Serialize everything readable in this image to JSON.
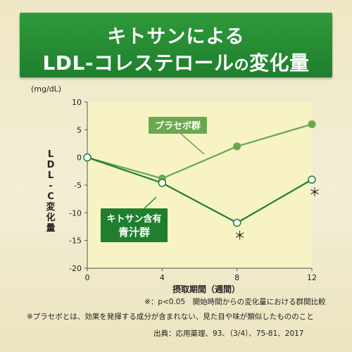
{
  "title": {
    "line1": "キトサンによる",
    "line2_main": "LDL-コレステロール",
    "line2_small": "の",
    "line2_end": "変化量"
  },
  "chart_data": {
    "type": "line",
    "unit": "(mg/dL)",
    "ylabel": "LDL-C変化量",
    "ylabel_chars": [
      "L",
      "D",
      "L",
      "-",
      "C",
      "変",
      "化",
      "量"
    ],
    "xlabel": "摂取期間（週間）",
    "x": [
      0,
      4,
      8,
      12
    ],
    "xticks": [
      "0",
      "4",
      "8",
      "12"
    ],
    "yticks": [
      "10",
      "5",
      "0",
      "-5",
      "-10",
      "-15",
      "-20"
    ],
    "ylim": [
      -20,
      10
    ],
    "xlim": [
      0,
      12
    ],
    "series": [
      {
        "name": "プラセボ群",
        "values": [
          0,
          -3.8,
          2.0,
          6.0
        ],
        "color": "#6aa84f",
        "marker": "filled",
        "significant": [
          false,
          false,
          false,
          false
        ]
      },
      {
        "name": "キトサン含有青汁群",
        "name_line1": "キトサン含有",
        "name_line2": "青汁群",
        "values": [
          0,
          -4.6,
          -11.8,
          -4.0
        ],
        "color": "#1f7f2e",
        "marker": "open",
        "significant": [
          false,
          false,
          true,
          true
        ]
      }
    ],
    "significance_mark": "＊"
  },
  "notes": {
    "sig": "※：p<0.05　開始時間からの変化量における群間比較",
    "placebo": "※プラセボとは、効果を発揮する成分が含まれない、見た目や味が類似したもののこと",
    "source": "出典：応用薬理、93、（3/4）、75-81、2017"
  },
  "colors": {
    "banner": "#1f7f2e",
    "plot_bg": "#f7f3c4",
    "placebo_label_bg": "#6aa84f",
    "chitosan_label_bg": "#1f7f2e"
  }
}
